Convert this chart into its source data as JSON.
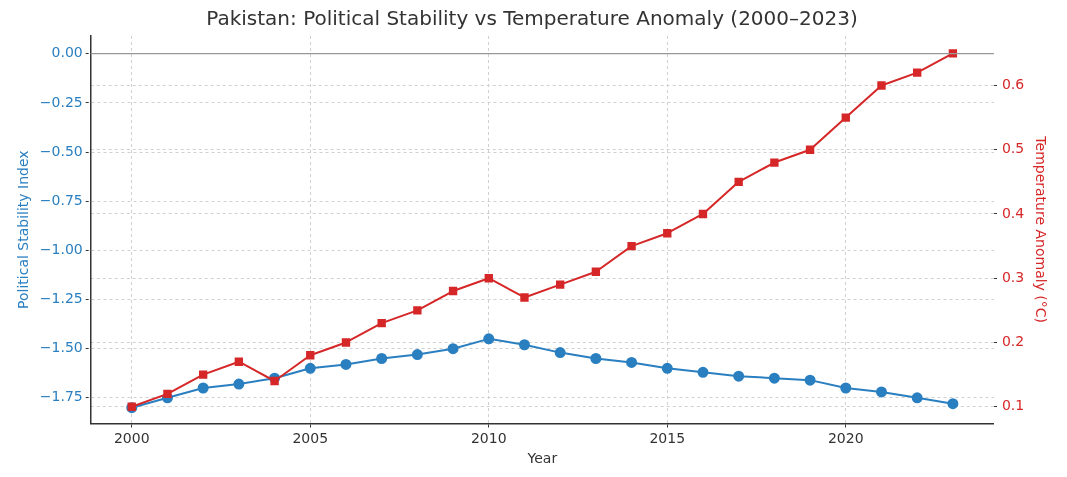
{
  "chart_data": {
    "type": "line",
    "title": "Pakistan: Political Stability vs Temperature Anomaly (2000–2023)",
    "xlabel": "Year",
    "ylabel": "Political Stability Index",
    "y2label": "Temperature Anomaly (°C)",
    "x": [
      2000,
      2001,
      2002,
      2003,
      2004,
      2005,
      2006,
      2007,
      2008,
      2009,
      2010,
      2011,
      2012,
      2013,
      2014,
      2015,
      2016,
      2017,
      2018,
      2019,
      2020,
      2021,
      2022,
      2023
    ],
    "series": [
      {
        "color": "#2a7fc0",
        "marker": "circle",
        "values": [
          -1.8,
          -1.75,
          -1.7,
          -1.68,
          -1.65,
          -1.6,
          -1.58,
          -1.55,
          -1.53,
          -1.5,
          -1.45,
          -1.48,
          -1.52,
          -1.55,
          -1.57,
          -1.6,
          -1.62,
          -1.64,
          -1.65,
          -1.66,
          -1.7,
          -1.72,
          -1.75,
          -1.78
        ]
      },
      {
        "color": "#d62728",
        "marker": "square",
        "axis": "y2",
        "values": [
          0.1,
          0.12,
          0.15,
          0.17,
          0.14,
          0.18,
          0.2,
          0.23,
          0.25,
          0.28,
          0.3,
          0.27,
          0.29,
          0.31,
          0.35,
          0.37,
          0.4,
          0.45,
          0.48,
          0.5,
          0.55,
          0.6,
          0.62,
          0.65
        ]
      }
    ],
    "xlim": [
      1998.85,
      2024.15
    ],
    "xticks": [
      2000,
      2005,
      2010,
      2015,
      2020
    ],
    "ylim": [
      -1.88,
      0.09
    ],
    "yticks": [
      {
        "value": -1.75,
        "label": "−1.75"
      },
      {
        "value": -1.5,
        "label": "−1.50"
      },
      {
        "value": -1.25,
        "label": "−1.25"
      },
      {
        "value": -1,
        "label": "−1.00"
      },
      {
        "value": -0.75,
        "label": "−0.75"
      },
      {
        "value": -0.5,
        "label": "−0.50"
      },
      {
        "value": -0.25,
        "label": "−0.25"
      },
      {
        "value": 0,
        "label": "0.00"
      }
    ],
    "y2lim": [
      0.074,
      0.677
    ],
    "y2ticks": [
      0.1,
      0.2,
      0.3,
      0.4,
      0.5,
      0.6
    ],
    "ref_lines": [
      {
        "axis": "y",
        "value": 0,
        "color": "#999999",
        "line_style": "solid"
      }
    ],
    "grid": true,
    "legend": false,
    "line_style": "solid"
  }
}
